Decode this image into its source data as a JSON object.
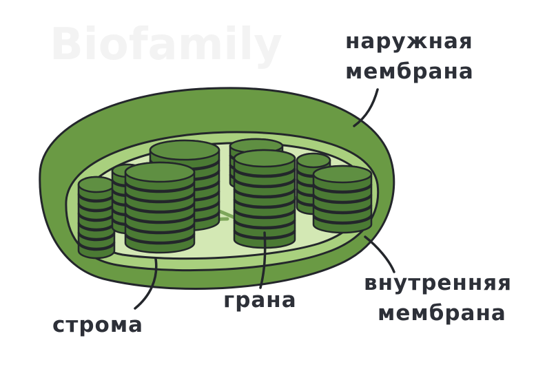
{
  "watermark": "Biofamily",
  "labels": {
    "outer_membrane": [
      "наружная",
      "мембрана"
    ],
    "inner_membrane": [
      "внутренняя",
      "мембрана"
    ],
    "granum": "грана",
    "stroma": "строма"
  },
  "colors": {
    "outer_membrane": "#6a9a44",
    "inner_membrane": "#a9d07e",
    "stroma": "#d3e8b4",
    "thylakoid": "#5f8f42",
    "thylakoid_dark": "#4b7a34",
    "outline": "#23262b",
    "label_text": "#2d3038"
  }
}
